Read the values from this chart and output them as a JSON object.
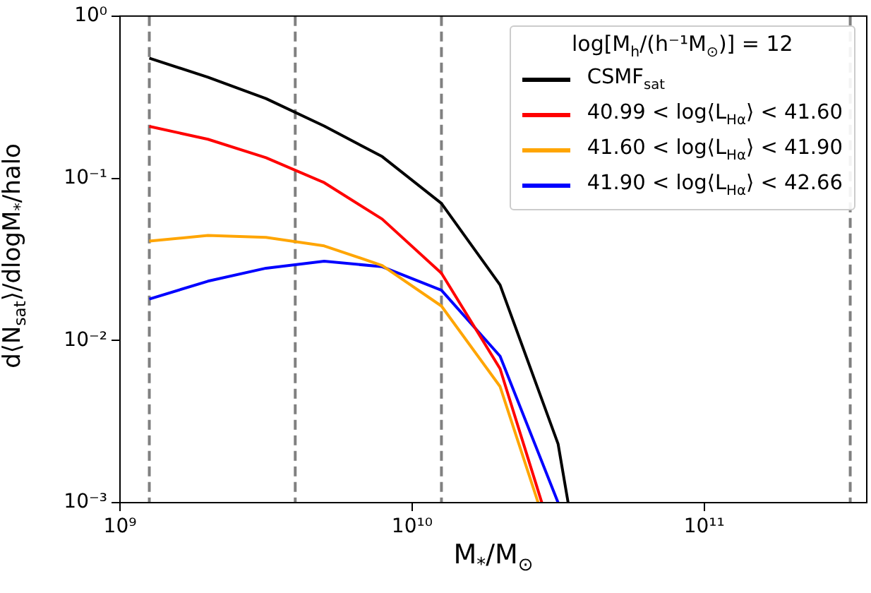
{
  "chart_data": {
    "type": "line",
    "xlabel": "M$_{*}$/M$_{⊙}$",
    "ylabel": "d⟨N$_{sat}$⟩/dlogM$_{*}$/halo",
    "legend_title": "log[M$_{h}$/(h⁻¹M$_{⊙}$)] = 12",
    "legend": "top right",
    "log": "xy",
    "grid": false,
    "marker": "none",
    "line_style": "solid",
    "xlim": [
      1000000000.0,
      360000000000.0
    ],
    "xticks": [
      {
        "value": 1000000000.0,
        "label": "10⁹"
      },
      {
        "value": 10000000000.0,
        "label": "10¹⁰"
      },
      {
        "value": 100000000000.0,
        "label": "10¹¹"
      }
    ],
    "ylim": [
      0.001,
      1
    ],
    "yticks": [
      {
        "value": 0.001,
        "label": "10⁻³"
      },
      {
        "value": 0.01,
        "label": "10⁻²"
      },
      {
        "value": 0.1,
        "label": "10⁻¹"
      },
      {
        "value": 1,
        "label": "10⁰"
      }
    ],
    "ref_lines": [
      {
        "axis": "x",
        "value": 1260000000.0,
        "color": "#808080",
        "line_style": "dashed"
      },
      {
        "axis": "x",
        "value": 3980000000.0,
        "color": "#808080",
        "line_style": "dashed"
      },
      {
        "axis": "x",
        "value": 12600000000.0,
        "color": "#808080",
        "line_style": "dashed"
      },
      {
        "axis": "x",
        "value": 316000000000.0,
        "color": "#808080",
        "line_style": "dashed"
      }
    ],
    "series": [
      {
        "name": "CSMF$_{sat}$",
        "color": "#000000",
        "x": [
          1260000000.0,
          2000000000.0,
          3160000000.0,
          5000000000.0,
          7900000000.0,
          12600000000.0,
          20000000000.0,
          31600000000.0,
          34200000000.0
        ],
        "values": [
          0.55,
          0.42,
          0.31,
          0.21,
          0.136,
          0.07,
          0.022,
          0.0023,
          0.001
        ]
      },
      {
        "name": "40.99 < log⟨L$_{Hα}$⟩ < 41.60",
        "color": "#ff0000",
        "x": [
          1260000000.0,
          2000000000.0,
          3160000000.0,
          5000000000.0,
          7900000000.0,
          12600000000.0,
          20000000000.0,
          27800000000.0
        ],
        "values": [
          0.209,
          0.174,
          0.134,
          0.094,
          0.056,
          0.026,
          0.0067,
          0.001
        ]
      },
      {
        "name": "41.60 < log⟨L$_{Hα}$⟩ < 41.90",
        "color": "#ffa500",
        "x": [
          1260000000.0,
          2000000000.0,
          3160000000.0,
          5000000000.0,
          7900000000.0,
          12600000000.0,
          20000000000.0,
          27000000000.0
        ],
        "values": [
          0.041,
          0.0444,
          0.0432,
          0.0383,
          0.029,
          0.0163,
          0.0052,
          0.001
        ]
      },
      {
        "name": "41.90 < log⟨L$_{Hα}$⟩ < 42.66",
        "color": "#0000ff",
        "x": [
          1260000000.0,
          2000000000.0,
          3160000000.0,
          5000000000.0,
          7900000000.0,
          12600000000.0,
          20000000000.0,
          31600000000.0
        ],
        "values": [
          0.018,
          0.0232,
          0.0279,
          0.0308,
          0.0285,
          0.0204,
          0.008,
          0.001
        ]
      }
    ]
  }
}
